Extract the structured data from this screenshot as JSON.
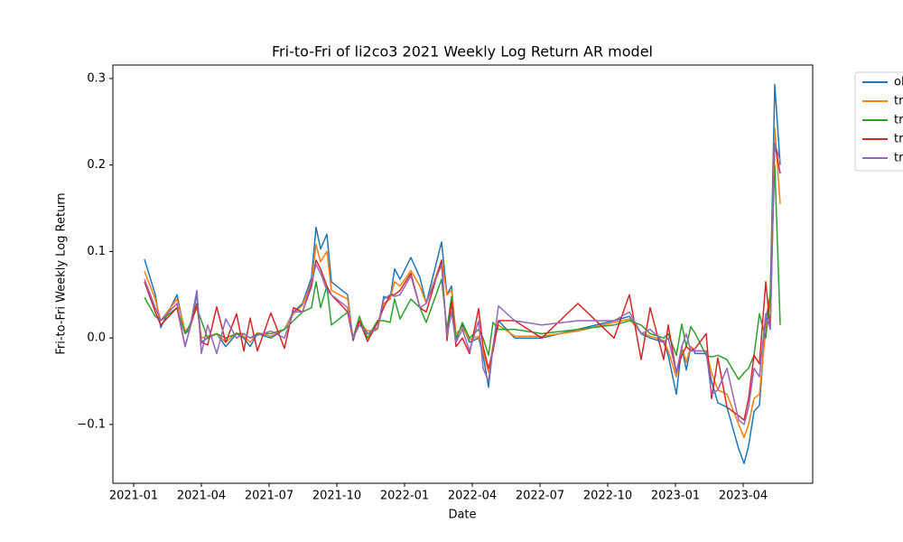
{
  "chart_data": {
    "type": "line",
    "title": "Fri-to-Fri of li2co3 2021 Weekly Log Return AR model",
    "x_label": "Date",
    "y_label": "Fri-to-Fri Weekly Log Return",
    "legend_loc": "outside",
    "grid": false,
    "x": [
      0.48,
      0.96,
      1.2,
      1.92,
      2.28,
      2.48,
      2.8,
      3.0,
      3.28,
      3.68,
      4.08,
      4.56,
      4.88,
      5.16,
      5.48,
      6.08,
      6.68,
      7.08,
      7.48,
      7.88,
      8.08,
      8.28,
      8.56,
      8.76,
      9.48,
      9.72,
      10.0,
      10.36,
      10.8,
      11.08,
      11.36,
      11.56,
      11.8,
      12.28,
      12.68,
      12.96,
      13.64,
      13.88,
      14.08,
      14.28,
      14.56,
      14.88,
      15.28,
      15.48,
      15.72,
      15.92,
      16.16,
      16.88,
      18.08,
      19.68,
      21.28,
      21.96,
      22.48,
      22.88,
      23.48,
      23.68,
      24.04,
      24.28,
      24.48,
      24.68,
      24.88,
      25.36,
      25.6,
      25.88,
      26.28,
      26.8,
      27.04,
      27.24,
      27.48,
      27.72,
      28.0,
      28.2,
      28.4,
      28.64
    ],
    "xlim": [
      -0.92,
      30.08
    ],
    "xticks": [
      {
        "value": 0,
        "label": "2021-01"
      },
      {
        "value": 3,
        "label": "2021-04"
      },
      {
        "value": 6,
        "label": "2021-07"
      },
      {
        "value": 9,
        "label": "2021-10"
      },
      {
        "value": 12,
        "label": "2022-01"
      },
      {
        "value": 15,
        "label": "2022-04"
      },
      {
        "value": 18,
        "label": "2022-07"
      },
      {
        "value": 21,
        "label": "2022-10"
      },
      {
        "value": 24,
        "label": "2023-01"
      },
      {
        "value": 27,
        "label": "2023-04"
      }
    ],
    "ylim": [
      -0.168,
      0.3156
    ],
    "yticks": [
      {
        "value": -0.1,
        "label": "−0.1"
      },
      {
        "value": 0,
        "label": "0.0"
      },
      0.1,
      0.2,
      0.3
    ],
    "series": [
      {
        "name": "ol",
        "color": "#1f77b4",
        "values": [
          0.091,
          0.05,
          0.012,
          0.05,
          0.005,
          0.01,
          0.05,
          -0.005,
          0.0,
          0.005,
          -0.01,
          0.005,
          0.0,
          -0.01,
          0.005,
          0.0,
          0.01,
          0.03,
          0.04,
          0.07,
          0.128,
          0.103,
          0.12,
          0.065,
          0.05,
          -0.003,
          0.02,
          0.005,
          0.01,
          0.048,
          0.045,
          0.08,
          0.068,
          0.093,
          0.07,
          0.04,
          0.111,
          0.05,
          0.06,
          0.0,
          0.015,
          -0.005,
          0.0,
          -0.02,
          -0.057,
          -0.01,
          0.02,
          0.0,
          0.0,
          0.01,
          0.02,
          0.025,
          0.005,
          0.0,
          -0.005,
          -0.02,
          -0.065,
          -0.01,
          -0.037,
          -0.01,
          -0.018,
          -0.018,
          -0.05,
          -0.075,
          -0.08,
          -0.128,
          -0.145,
          -0.125,
          -0.085,
          -0.078,
          0.02,
          0.05,
          0.293,
          0.2
        ]
      },
      {
        "name": "tr",
        "color": "#ff7f0e",
        "values": [
          0.077,
          0.045,
          0.02,
          0.045,
          0.008,
          0.012,
          0.04,
          0.0,
          0.002,
          0.005,
          -0.005,
          0.006,
          0.002,
          -0.005,
          0.006,
          0.002,
          0.01,
          0.028,
          0.038,
          0.065,
          0.108,
          0.088,
          0.1,
          0.055,
          0.045,
          0.0,
          0.018,
          0.008,
          0.01,
          0.04,
          0.045,
          0.065,
          0.06,
          0.078,
          0.06,
          0.04,
          0.09,
          0.05,
          0.055,
          0.005,
          0.012,
          -0.002,
          0.002,
          -0.015,
          -0.04,
          -0.008,
          0.015,
          0.002,
          0.002,
          0.008,
          0.018,
          0.022,
          0.006,
          0.002,
          -0.003,
          -0.015,
          -0.045,
          -0.01,
          -0.028,
          -0.01,
          -0.015,
          -0.015,
          -0.04,
          -0.06,
          -0.065,
          -0.1,
          -0.115,
          -0.1,
          -0.07,
          -0.065,
          0.01,
          0.04,
          0.243,
          0.155
        ]
      },
      {
        "name": "tr",
        "color": "#2ca02c",
        "values": [
          0.047,
          0.025,
          0.02,
          0.035,
          0.005,
          0.015,
          0.035,
          0.02,
          0.0,
          0.005,
          0.0,
          0.005,
          0.005,
          0.0,
          0.005,
          0.005,
          0.01,
          0.02,
          0.03,
          0.035,
          0.065,
          0.035,
          0.06,
          0.015,
          0.03,
          0.0,
          0.025,
          0.0,
          0.02,
          0.02,
          0.018,
          0.045,
          0.022,
          0.045,
          0.035,
          0.018,
          0.068,
          0.01,
          0.048,
          -0.003,
          0.018,
          0.0,
          0.01,
          0.0,
          -0.02,
          0.018,
          0.01,
          0.01,
          0.005,
          0.01,
          0.015,
          0.02,
          0.015,
          0.005,
          0.0,
          0.005,
          -0.02,
          0.016,
          -0.01,
          0.013,
          0.005,
          -0.02,
          -0.022,
          -0.02,
          -0.025,
          -0.048,
          -0.04,
          -0.035,
          -0.02,
          0.028,
          0.0,
          0.05,
          0.2,
          0.015
        ]
      },
      {
        "name": "tr",
        "color": "#d62728",
        "values": [
          0.065,
          0.03,
          0.015,
          0.035,
          -0.01,
          0.01,
          0.04,
          -0.005,
          -0.008,
          0.036,
          -0.005,
          0.028,
          -0.015,
          0.023,
          -0.015,
          0.029,
          -0.012,
          0.035,
          0.03,
          0.06,
          0.09,
          0.08,
          0.06,
          0.05,
          0.03,
          -0.002,
          0.02,
          -0.004,
          0.018,
          0.035,
          0.05,
          0.05,
          0.055,
          0.075,
          0.035,
          0.03,
          0.09,
          -0.003,
          0.042,
          -0.01,
          0.0,
          -0.018,
          0.034,
          -0.01,
          -0.035,
          -0.015,
          0.02,
          0.02,
          0.0,
          0.04,
          0.0,
          0.05,
          -0.025,
          0.035,
          -0.025,
          0.015,
          -0.04,
          -0.02,
          -0.01,
          -0.015,
          -0.012,
          0.005,
          -0.07,
          -0.023,
          -0.08,
          -0.09,
          -0.095,
          -0.07,
          -0.02,
          -0.03,
          0.065,
          0.01,
          0.225,
          0.19
        ]
      },
      {
        "name": "tr",
        "color": "#9467bd",
        "values": [
          0.068,
          0.035,
          0.02,
          0.04,
          -0.01,
          0.01,
          0.055,
          -0.018,
          0.015,
          -0.018,
          0.022,
          0.0,
          0.005,
          0.0,
          0.003,
          0.008,
          0.0,
          0.03,
          0.03,
          0.065,
          0.085,
          0.075,
          0.055,
          0.05,
          0.035,
          0.0,
          0.015,
          0.005,
          0.012,
          0.045,
          0.05,
          0.048,
          0.05,
          0.072,
          0.035,
          0.04,
          0.085,
          0.002,
          0.03,
          -0.005,
          0.01,
          -0.015,
          0.02,
          -0.035,
          -0.05,
          -0.01,
          0.037,
          0.02,
          0.015,
          0.02,
          0.02,
          0.03,
          0.005,
          0.01,
          -0.005,
          0.0,
          -0.04,
          -0.01,
          0.005,
          -0.015,
          -0.015,
          -0.015,
          -0.065,
          -0.06,
          -0.035,
          -0.095,
          -0.1,
          -0.08,
          -0.035,
          -0.045,
          0.028,
          0.01,
          0.225,
          0.205
        ]
      }
    ]
  }
}
